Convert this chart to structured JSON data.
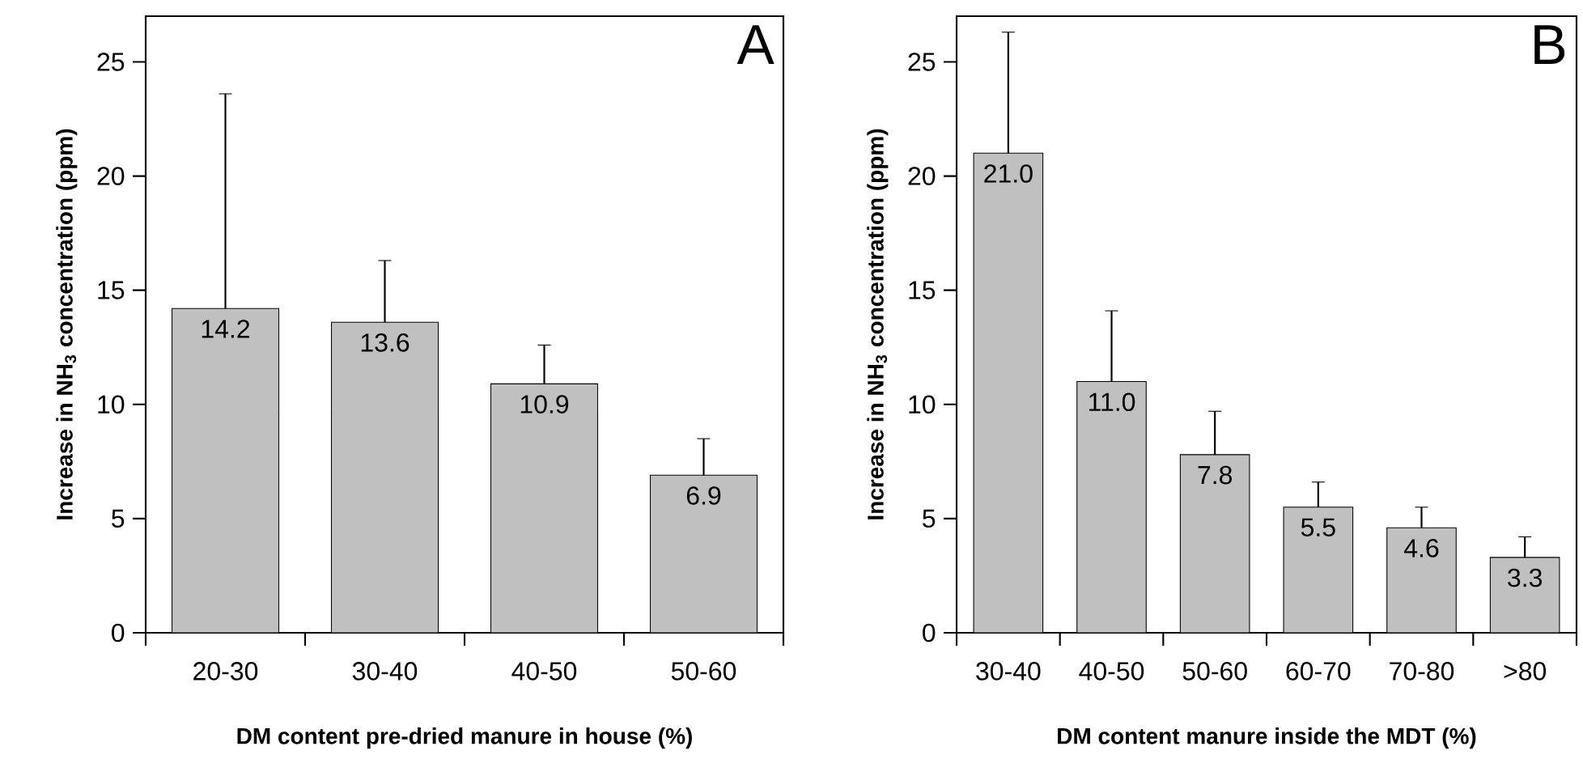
{
  "chart_data": [
    {
      "type": "bar",
      "title": "A",
      "xlabel": "DM content pre-dried manure in house (%)",
      "ylabel": "Increase in NH$_{3}$ concentration (ppm)",
      "categories": [
        "20-30",
        "30-40",
        "40-50",
        "50-60"
      ],
      "values": [
        14.2,
        13.6,
        10.9,
        6.9
      ],
      "value_labels": [
        "14.2",
        "13.6",
        "10.9",
        "6.9"
      ],
      "errors": [
        [
          14.2,
          23.6
        ],
        [
          13.6,
          16.3
        ],
        [
          10.9,
          12.6
        ],
        [
          6.9,
          8.5
        ]
      ],
      "color": "#c0c0c0",
      "ylim": [
        0,
        27
      ],
      "yticks": [
        0,
        5,
        10,
        15,
        20,
        25
      ]
    },
    {
      "type": "bar",
      "title": "B",
      "xlabel": "DM content manure inside the MDT (%)",
      "ylabel": "Increase in NH$_{3}$ concentration (ppm)",
      "categories": [
        "30-40",
        "40-50",
        "50-60",
        "60-70",
        "70-80",
        ">80"
      ],
      "values": [
        21.0,
        11.0,
        7.8,
        5.5,
        4.6,
        3.3
      ],
      "value_labels": [
        "21.0",
        "11.0",
        "7.8",
        "5.5",
        "4.6",
        "3.3"
      ],
      "errors": [
        [
          21.0,
          26.3
        ],
        [
          11.0,
          14.1
        ],
        [
          7.8,
          9.7
        ],
        [
          5.5,
          6.6
        ],
        [
          4.6,
          5.5
        ],
        [
          3.3,
          4.2
        ]
      ],
      "color": "#c0c0c0",
      "ylim": [
        0,
        27
      ],
      "yticks": [
        0,
        5,
        10,
        15,
        20,
        25
      ]
    }
  ]
}
